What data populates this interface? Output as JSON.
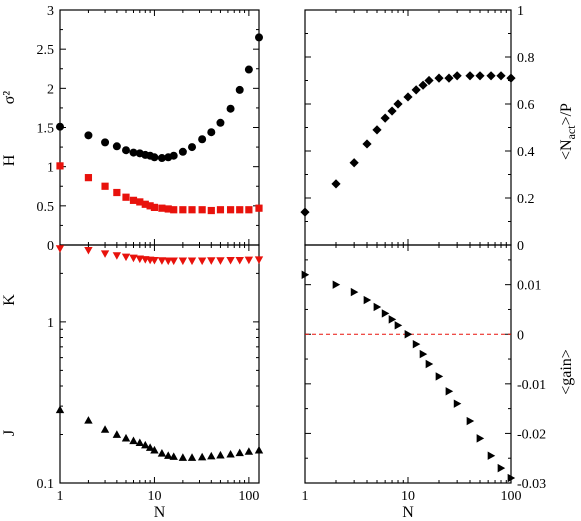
{
  "chart_data": [
    {
      "id": "sigma2",
      "type": "scatter",
      "xlabel": "",
      "ylabel": "σ²",
      "xscale": "log",
      "xlim": [
        1,
        128
      ],
      "ylim": [
        0,
        3
      ],
      "yticks": [
        0,
        0.5,
        1,
        1.5,
        2,
        2.5,
        3
      ],
      "ytick_labels": [
        "0",
        "0.5",
        "1",
        "1.5",
        "2",
        "2.5",
        "3"
      ],
      "series": [
        {
          "name": "H",
          "marker": "circle",
          "color": "#000000",
          "x": [
            1,
            2,
            3,
            4,
            5,
            6,
            7,
            8,
            9,
            10,
            12,
            14,
            16,
            20,
            25,
            32,
            40,
            50,
            64,
            80,
            100,
            128
          ],
          "y": [
            1.51,
            1.4,
            1.31,
            1.26,
            1.21,
            1.18,
            1.17,
            1.15,
            1.14,
            1.12,
            1.11,
            1.12,
            1.14,
            1.19,
            1.25,
            1.35,
            1.44,
            1.56,
            1.74,
            1.98,
            2.24,
            2.65
          ]
        },
        {
          "name": "",
          "marker": "square",
          "color": "#e8120c",
          "x": [
            1,
            2,
            3,
            4,
            5,
            6,
            7,
            8,
            9,
            10,
            12,
            14,
            16,
            20,
            25,
            32,
            40,
            50,
            64,
            80,
            100,
            128
          ],
          "y": [
            1.01,
            0.86,
            0.75,
            0.67,
            0.61,
            0.57,
            0.55,
            0.52,
            0.5,
            0.48,
            0.47,
            0.46,
            0.45,
            0.45,
            0.45,
            0.45,
            0.44,
            0.45,
            0.45,
            0.45,
            0.45,
            0.47
          ]
        }
      ]
    },
    {
      "id": "nact",
      "type": "scatter",
      "xlabel": "",
      "ylabel": "<N_act>/P",
      "ylabel_parts": {
        "pre": "<N",
        "sub": "act",
        "post": ">/P"
      },
      "xscale": "log",
      "xlim": [
        1,
        100
      ],
      "ylim": [
        0,
        1
      ],
      "yticks": [
        0,
        0.2,
        0.4,
        0.6,
        0.8,
        1
      ],
      "ytick_labels": [
        "0",
        "0.2",
        "0.4",
        "0.6",
        "0.8",
        "1"
      ],
      "series": [
        {
          "name": "",
          "marker": "diamond",
          "color": "#000000",
          "x": [
            1,
            2,
            3,
            4,
            5,
            6,
            7,
            8,
            10,
            12,
            14,
            16,
            20,
            25,
            30,
            40,
            50,
            64,
            80,
            100
          ],
          "y": [
            0.14,
            0.26,
            0.35,
            0.43,
            0.49,
            0.54,
            0.57,
            0.6,
            0.63,
            0.66,
            0.68,
            0.7,
            0.71,
            0.71,
            0.72,
            0.72,
            0.72,
            0.72,
            0.72,
            0.71
          ]
        }
      ]
    },
    {
      "id": "kj",
      "type": "scatter",
      "xlabel": "N",
      "ylabel": "",
      "xscale": "log",
      "yscale": "log",
      "xlim": [
        1,
        128
      ],
      "ylim": [
        0.1,
        3.0
      ],
      "xticks": [
        1,
        10,
        100
      ],
      "xtick_labels": [
        "1",
        "10",
        "100"
      ],
      "yticks": [
        0.1,
        1
      ],
      "ytick_labels": [
        "0.1",
        "1"
      ],
      "series": [
        {
          "name": "K",
          "marker": "triangle-down",
          "color": "#e8120c",
          "x": [
            1,
            2,
            3,
            4,
            5,
            6,
            7,
            8,
            9,
            10,
            12,
            14,
            16,
            20,
            25,
            32,
            40,
            50,
            64,
            80,
            100,
            128
          ],
          "y": [
            2.85,
            2.78,
            2.65,
            2.58,
            2.53,
            2.49,
            2.46,
            2.44,
            2.42,
            2.41,
            2.4,
            2.39,
            2.39,
            2.39,
            2.39,
            2.39,
            2.4,
            2.4,
            2.41,
            2.41,
            2.42,
            2.43
          ]
        },
        {
          "name": "J",
          "marker": "triangle-up",
          "color": "#000000",
          "x": [
            1,
            2,
            3,
            4,
            5,
            6,
            7,
            8,
            9,
            10,
            12,
            14,
            16,
            20,
            25,
            32,
            40,
            50,
            64,
            80,
            100,
            128
          ],
          "y": [
            0.285,
            0.245,
            0.215,
            0.2,
            0.19,
            0.183,
            0.178,
            0.172,
            0.166,
            0.16,
            0.153,
            0.148,
            0.146,
            0.144,
            0.144,
            0.145,
            0.147,
            0.149,
            0.151,
            0.154,
            0.157,
            0.16
          ]
        }
      ]
    },
    {
      "id": "gain",
      "type": "scatter",
      "xlabel": "N",
      "ylabel": "<gain>",
      "xscale": "log",
      "xlim": [
        1,
        100
      ],
      "ylim": [
        -0.03,
        0.018
      ],
      "xticks": [
        1,
        10,
        100
      ],
      "xtick_labels": [
        "1",
        "10",
        "100"
      ],
      "yticks": [
        -0.03,
        -0.02,
        -0.01,
        0,
        0.01
      ],
      "ytick_labels": [
        "-0.03",
        "-0.02",
        "-0.01",
        "0",
        "0.01"
      ],
      "reference_line": {
        "y": 0,
        "color": "#e8120c",
        "style": "dashed"
      },
      "series": [
        {
          "name": "",
          "marker": "triangle-right",
          "color": "#000000",
          "x": [
            1,
            2,
            3,
            4,
            5,
            6,
            7,
            8,
            10,
            12,
            14,
            16,
            20,
            25,
            30,
            40,
            50,
            64,
            80,
            100
          ],
          "y": [
            0.012,
            0.01,
            0.0085,
            0.0069,
            0.0055,
            0.0042,
            0.003,
            0.0018,
            0.0,
            -0.002,
            -0.004,
            -0.006,
            -0.0085,
            -0.0115,
            -0.014,
            -0.0175,
            -0.021,
            -0.0245,
            -0.027,
            -0.029
          ]
        }
      ]
    }
  ]
}
